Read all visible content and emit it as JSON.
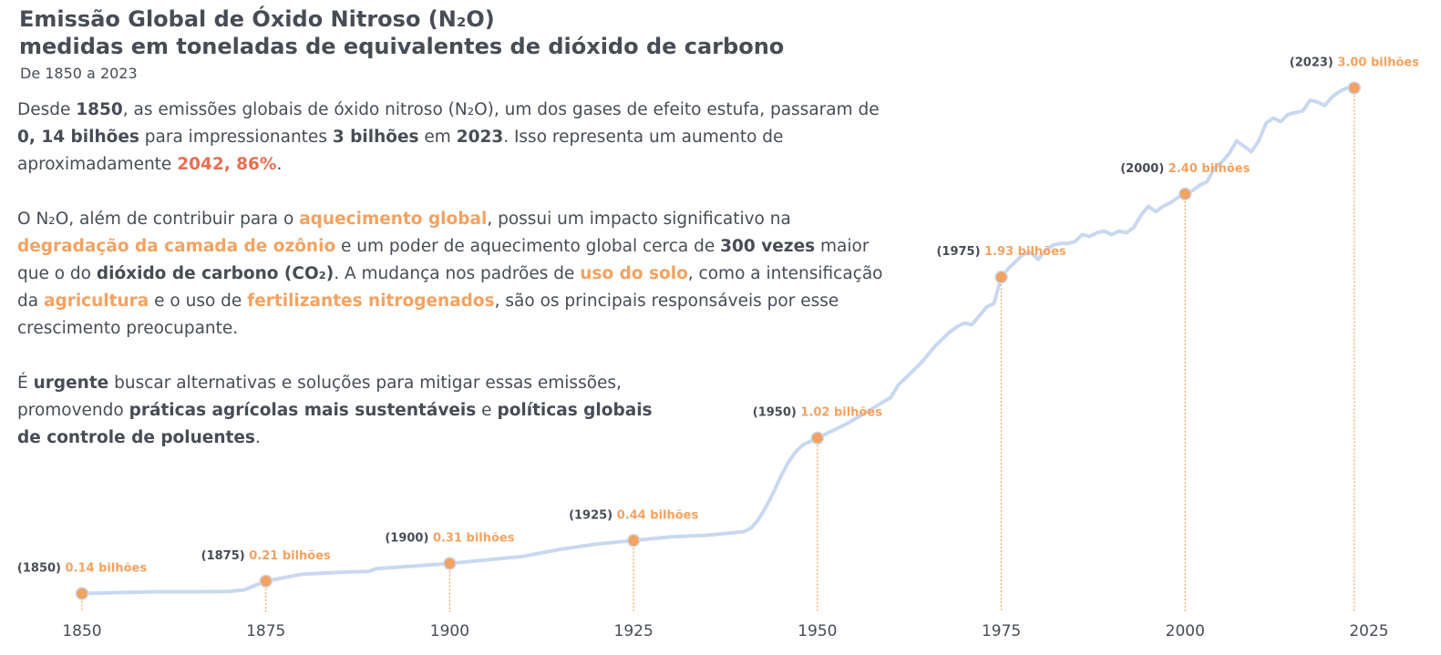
{
  "header": {
    "title_line1": "Emissão Global de Óxido Nitroso (N₂O)",
    "title_line2": "medidas em toneladas de equivalentes de dióxido de carbono",
    "subtitle": "De 1850 a 2023"
  },
  "text": {
    "p1": [
      "Desde ",
      "1850",
      ", as emissões globais de óxido nitroso (N₂O), um dos gases de efeito estufa, passaram de ",
      "0, 14 bilhões",
      " para impressionantes ",
      "3 bilhões",
      " em ",
      "2023",
      ". Isso representa um aumento de aproximadamente ",
      "2042, 86%",
      "."
    ],
    "p2": [
      "O N₂O, além de contribuir para o ",
      "aquecimento global",
      ", possui um impacto significativo na ",
      "degradação da camada de ozônio",
      " e um poder de aquecimento global cerca de ",
      "300 vezes",
      " maior que o do ",
      "dióxido de carbono (CO₂)",
      ". A mudança nos padrões de ",
      "uso do solo",
      ", como a intensificação da ",
      "agricultura",
      " e o uso de ",
      "fertilizantes nitrogenados",
      ", são os principais responsáveis por esse crescimento preocupante."
    ],
    "p3": [
      "É ",
      "urgente",
      " buscar alternativas e soluções para mitigar essas emissões, promovendo ",
      "práticas agrícolas mais sustentáveis",
      " e ",
      "políticas globais de controle de poluentes",
      "."
    ]
  },
  "colors": {
    "line": "#c9d8f0",
    "marker": "#f4a261",
    "accent_red": "#e76f51",
    "text": "#474c55"
  },
  "chart_data": {
    "type": "line",
    "unit": "bilhões",
    "xlim": [
      1850,
      2025
    ],
    "x_ticks": [
      "1850",
      "1875",
      "1900",
      "1925",
      "1950",
      "1975",
      "2000",
      "2025"
    ],
    "series": [
      {
        "x": [
          1850,
          1855,
          1860,
          1865,
          1870,
          1872,
          1875,
          1880,
          1885,
          1889,
          1890,
          1895,
          1900,
          1905,
          1910,
          1915,
          1920,
          1925,
          1930,
          1935,
          1940,
          1941,
          1942,
          1943,
          1944,
          1945,
          1946,
          1947,
          1948,
          1949,
          1950,
          1952,
          1954,
          1956,
          1958,
          1960,
          1961,
          1962,
          1963,
          1964,
          1965,
          1966,
          1967,
          1968,
          1969,
          1970,
          1971,
          1972,
          1973,
          1974,
          1975,
          1976,
          1977,
          1978,
          1979,
          1980,
          1981,
          1982,
          1983,
          1984,
          1985,
          1986,
          1987,
          1988,
          1989,
          1990,
          1991,
          1992,
          1993,
          1994,
          1995,
          1996,
          1997,
          1998,
          1999,
          2000,
          2001,
          2002,
          2003,
          2004,
          2005,
          2006,
          2007,
          2008,
          2009,
          2010,
          2011,
          2012,
          2013,
          2014,
          2015,
          2016,
          2017,
          2018,
          2019,
          2020,
          2021,
          2022,
          2023
        ],
        "y": [
          0.14,
          0.145,
          0.15,
          0.15,
          0.152,
          0.16,
          0.21,
          0.25,
          0.26,
          0.265,
          0.28,
          0.295,
          0.31,
          0.33,
          0.35,
          0.39,
          0.42,
          0.44,
          0.46,
          0.47,
          0.49,
          0.51,
          0.56,
          0.63,
          0.71,
          0.8,
          0.88,
          0.94,
          0.98,
          1.0,
          1.02,
          1.06,
          1.1,
          1.15,
          1.2,
          1.25,
          1.32,
          1.36,
          1.4,
          1.44,
          1.49,
          1.54,
          1.58,
          1.62,
          1.65,
          1.67,
          1.66,
          1.71,
          1.76,
          1.78,
          1.93,
          1.98,
          2.02,
          2.06,
          2.07,
          2.03,
          2.08,
          2.11,
          2.12,
          2.12,
          2.13,
          2.17,
          2.16,
          2.18,
          2.19,
          2.17,
          2.19,
          2.18,
          2.21,
          2.28,
          2.33,
          2.3,
          2.33,
          2.35,
          2.38,
          2.4,
          2.42,
          2.45,
          2.47,
          2.55,
          2.58,
          2.63,
          2.7,
          2.67,
          2.64,
          2.7,
          2.8,
          2.83,
          2.81,
          2.85,
          2.86,
          2.87,
          2.93,
          2.92,
          2.9,
          2.95,
          2.98,
          3.0,
          3.0
        ]
      }
    ],
    "annotations": [
      {
        "year_label": "(1850)",
        "value_label": "0.14 bilhões",
        "x": 1850,
        "y": 0.14
      },
      {
        "year_label": "(1875)",
        "value_label": "0.21 bilhões",
        "x": 1875,
        "y": 0.21
      },
      {
        "year_label": "(1900)",
        "value_label": "0.31 bilhões",
        "x": 1900,
        "y": 0.31
      },
      {
        "year_label": "(1925)",
        "value_label": "0.44 bilhões",
        "x": 1925,
        "y": 0.44
      },
      {
        "year_label": "(1950)",
        "value_label": "1.02 bilhões",
        "x": 1950,
        "y": 1.02
      },
      {
        "year_label": "(1975)",
        "value_label": "1.93 bilhões",
        "x": 1975,
        "y": 1.93
      },
      {
        "year_label": "(2000)",
        "value_label": "2.40 bilhões",
        "x": 2000,
        "y": 2.4
      },
      {
        "year_label": "(2023)",
        "value_label": "3.00 bilhões",
        "x": 2023,
        "y": 3.0
      }
    ]
  }
}
